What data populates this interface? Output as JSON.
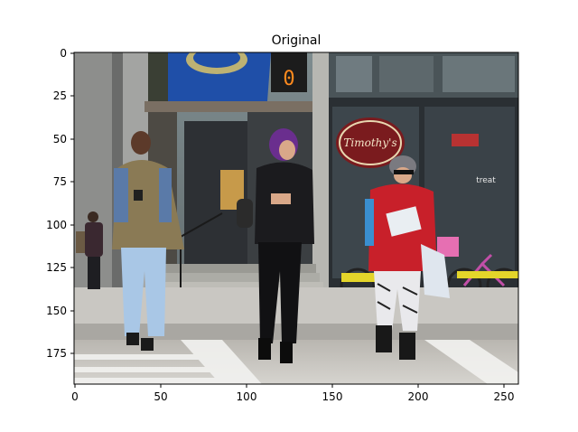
{
  "figure": {
    "title": "Original",
    "x_ticks": [
      "0",
      "50",
      "100",
      "150",
      "200",
      "250"
    ],
    "y_ticks": [
      "0",
      "25",
      "50",
      "75",
      "100",
      "125",
      "150",
      "175"
    ]
  },
  "image": {
    "subject": "pedestrians-on-crosswalk",
    "shop_sign_text": "Timothy's",
    "shop_window_text": "treat",
    "crossing_signal_text": "0",
    "colors": {
      "sky_blue_awning": "#1f4fa8",
      "red_jacket": "#c8202a",
      "olive_jacket": "#8a7a55",
      "black_outfit": "#1b1b1e",
      "storefront_dark": "#2d3034",
      "sidewalk": "#c9c7c2"
    }
  }
}
